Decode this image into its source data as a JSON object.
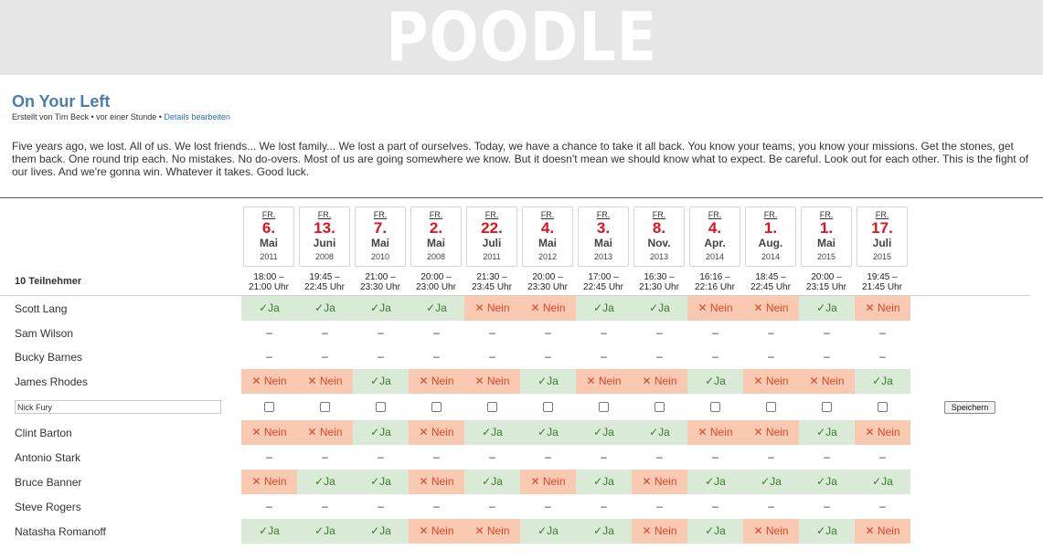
{
  "banner": {
    "title": "POODLE"
  },
  "poll": {
    "title": "On Your Left",
    "meta_prefix": "Erstellt von Tim Beck • vor einer Stunde • ",
    "meta_link": "Details bearbeiten",
    "description": "Five years ago, we lost. All of us. We lost friends... We lost family... We lost a part of ourselves. Today, we have a chance to take it all back. You know your teams, you know your missions. Get the stones, get them back. One round trip each. No mistakes. No do-overs. Most of us are going somewhere we know. But it doesn't mean we should know what to expect. Be careful. Look out for each other. This is the fight of our lives. And we're gonna win. Whatever it takes. Good luck."
  },
  "table": {
    "participants_label": "10 Teilnehmer",
    "dates": [
      {
        "dow": "FR.",
        "day": "6.",
        "month": "Mai",
        "year": "2011",
        "t1": "18:00 –",
        "t2": "21:00 Uhr"
      },
      {
        "dow": "FR.",
        "day": "13.",
        "month": "Juni",
        "year": "2008",
        "t1": "19:45 –",
        "t2": "22:45 Uhr"
      },
      {
        "dow": "FR.",
        "day": "7.",
        "month": "Mai",
        "year": "2010",
        "t1": "21:00 –",
        "t2": "23:30 Uhr"
      },
      {
        "dow": "FR.",
        "day": "2.",
        "month": "Mai",
        "year": "2008",
        "t1": "20:00 –",
        "t2": "23:00 Uhr"
      },
      {
        "dow": "FR.",
        "day": "22.",
        "month": "Juli",
        "year": "2011",
        "t1": "21:30 –",
        "t2": "23:45 Uhr"
      },
      {
        "dow": "FR.",
        "day": "4.",
        "month": "Mai",
        "year": "2012",
        "t1": "20:00 –",
        "t2": "23:30 Uhr"
      },
      {
        "dow": "FR.",
        "day": "3.",
        "month": "Mai",
        "year": "2013",
        "t1": "17:00 –",
        "t2": "22:45 Uhr"
      },
      {
        "dow": "FR.",
        "day": "8.",
        "month": "Nov.",
        "year": "2013",
        "t1": "16:30 –",
        "t2": "21:30 Uhr"
      },
      {
        "dow": "FR.",
        "day": "4.",
        "month": "Apr.",
        "year": "2014",
        "t1": "16:16 –",
        "t2": "22:16 Uhr"
      },
      {
        "dow": "FR.",
        "day": "1.",
        "month": "Aug.",
        "year": "2014",
        "t1": "18:45 –",
        "t2": "22:45 Uhr"
      },
      {
        "dow": "FR.",
        "day": "1.",
        "month": "Mai",
        "year": "2015",
        "t1": "20:00 –",
        "t2": "23:15 Uhr"
      },
      {
        "dow": "FR.",
        "day": "17.",
        "month": "Juli",
        "year": "2015",
        "t1": "19:45 –",
        "t2": "21:45 Uhr"
      }
    ],
    "labels": {
      "yes": "✓Ja",
      "no": "✕ Nein",
      "none": "–"
    },
    "rows_before": [
      {
        "name": "Scott Lang",
        "votes": [
          "y",
          "y",
          "y",
          "y",
          "n",
          "n",
          "y",
          "y",
          "n",
          "n",
          "y",
          "n"
        ]
      },
      {
        "name": "Sam Wilson",
        "votes": [
          "-",
          "-",
          "-",
          "-",
          "-",
          "-",
          "-",
          "-",
          "-",
          "-",
          "-",
          "-"
        ]
      },
      {
        "name": "Bucky Barnes",
        "votes": [
          "-",
          "-",
          "-",
          "-",
          "-",
          "-",
          "-",
          "-",
          "-",
          "-",
          "-",
          "-"
        ]
      },
      {
        "name": "James Rhodes",
        "votes": [
          "n",
          "n",
          "y",
          "n",
          "n",
          "y",
          "n",
          "n",
          "y",
          "n",
          "n",
          "y"
        ]
      }
    ],
    "input_row": {
      "value": "Nick Fury",
      "save_label": "Speichern"
    },
    "rows_after": [
      {
        "name": "Clint Barton",
        "votes": [
          "n",
          "n",
          "y",
          "n",
          "y",
          "y",
          "y",
          "y",
          "n",
          "n",
          "y",
          "n"
        ]
      },
      {
        "name": "Antonio Stark",
        "votes": [
          "-",
          "-",
          "-",
          "-",
          "-",
          "-",
          "-",
          "-",
          "-",
          "-",
          "-",
          "-"
        ]
      },
      {
        "name": "Bruce Banner",
        "votes": [
          "n",
          "y",
          "y",
          "n",
          "y",
          "n",
          "y",
          "n",
          "y",
          "y",
          "y",
          "y"
        ]
      },
      {
        "name": "Steve Rogers",
        "votes": [
          "-",
          "-",
          "-",
          "-",
          "-",
          "-",
          "-",
          "-",
          "-",
          "-",
          "-",
          "-"
        ]
      },
      {
        "name": "Natasha Romanoff",
        "votes": [
          "y",
          "y",
          "y",
          "n",
          "n",
          "y",
          "y",
          "n",
          "y",
          "n",
          "y",
          "n"
        ]
      }
    ]
  }
}
